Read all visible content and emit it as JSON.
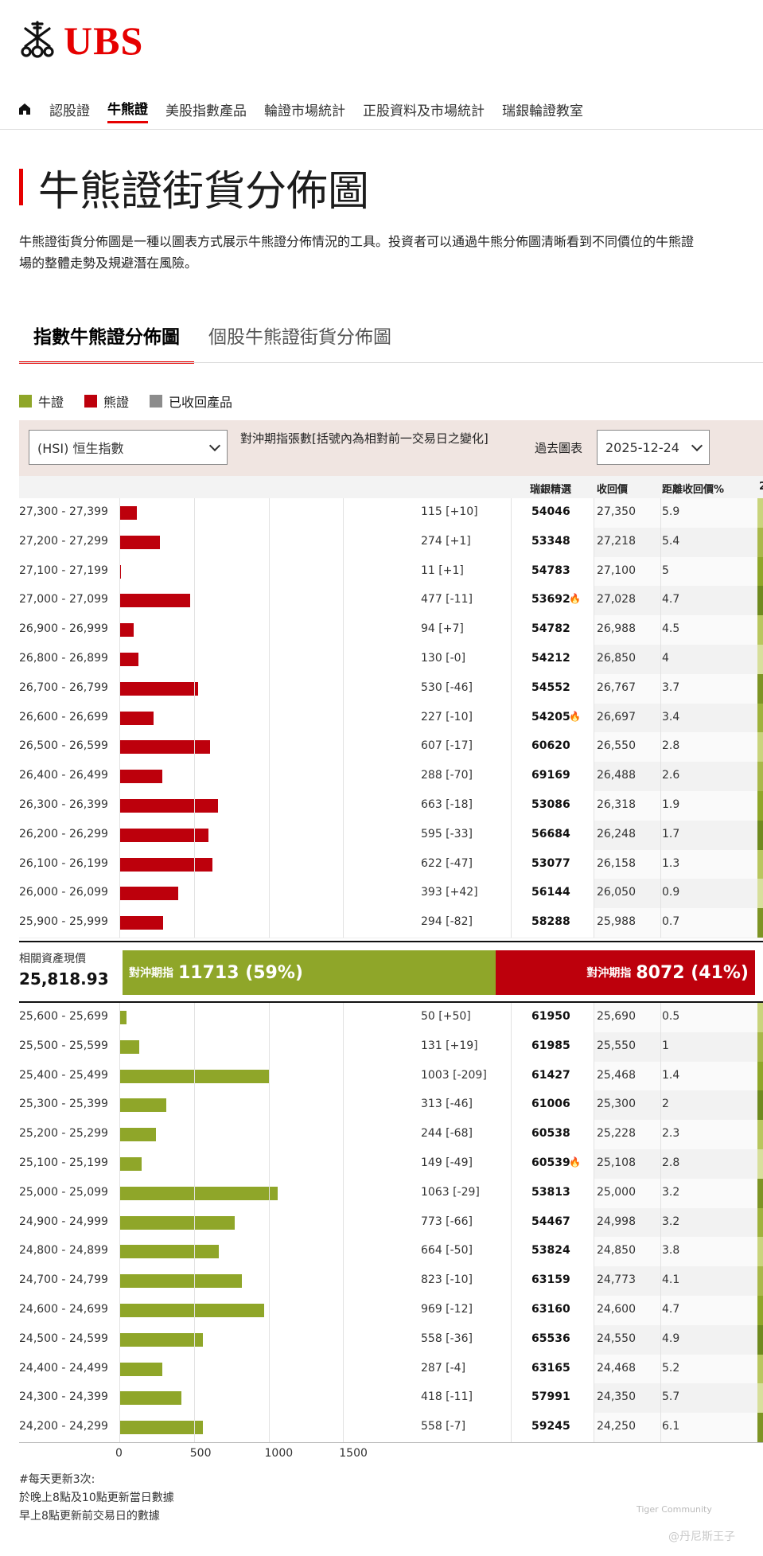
{
  "header": {
    "logo_text": "UBS",
    "nav": [
      "認股證",
      "牛熊證",
      "美股指數產品",
      "輪證市場統計",
      "正股資料及市場統計",
      "瑞銀輪證教室"
    ],
    "nav_active": 1
  },
  "page": {
    "title": "牛熊證街貨分佈圖",
    "intro": "牛熊證街貨分佈圖是一種以圖表方式展示牛熊證分佈情況的工具。投資者可以通過牛熊分佈圖清晰看到不同價位的牛熊證\n場的整體走勢及規避潛在風險。"
  },
  "tabs": [
    {
      "label": "指數牛熊證分佈圖",
      "active": true
    },
    {
      "label": "個股牛熊證街貨分佈圖",
      "active": false
    }
  ],
  "legend": [
    {
      "label": "牛證",
      "color": "#8fa629"
    },
    {
      "label": "熊證",
      "color": "#bd000c"
    },
    {
      "label": "已收回產品",
      "color": "#8c8c8c"
    }
  ],
  "controls": {
    "underlying": "(HSI) 恒生指數",
    "hedge_label": "對沖期指張數[括號內為相對前一交易日之變化]",
    "past_chart_label": "過去圖表",
    "date": "2025-12-24"
  },
  "table_headers": {
    "code": "瑞銀精選",
    "call": "收回價",
    "distance": "距離收回價%",
    "extra": "2"
  },
  "bear_rows": [
    {
      "range": "27,300 - 27,399",
      "value": 115,
      "hedge": "115 [+10]",
      "code": "54046",
      "hot": false,
      "call": "27,350",
      "dist": "5.9"
    },
    {
      "range": "27,200 - 27,299",
      "value": 274,
      "hedge": "274 [+1]",
      "code": "53348",
      "hot": false,
      "call": "27,218",
      "dist": "5.4"
    },
    {
      "range": "27,100 - 27,199",
      "value": 11,
      "hedge": "11 [+1]",
      "code": "54783",
      "hot": false,
      "call": "27,100",
      "dist": "5"
    },
    {
      "range": "27,000 - 27,099",
      "value": 477,
      "hedge": "477 [-11]",
      "code": "53692",
      "hot": true,
      "call": "27,028",
      "dist": "4.7"
    },
    {
      "range": "26,900 - 26,999",
      "value": 94,
      "hedge": "94 [+7]",
      "code": "54782",
      "hot": false,
      "call": "26,988",
      "dist": "4.5"
    },
    {
      "range": "26,800 - 26,899",
      "value": 130,
      "hedge": "130 [-0]",
      "code": "54212",
      "hot": false,
      "call": "26,850",
      "dist": "4"
    },
    {
      "range": "26,700 - 26,799",
      "value": 530,
      "hedge": "530 [-46]",
      "code": "54552",
      "hot": false,
      "call": "26,767",
      "dist": "3.7"
    },
    {
      "range": "26,600 - 26,699",
      "value": 227,
      "hedge": "227 [-10]",
      "code": "54205",
      "hot": true,
      "call": "26,697",
      "dist": "3.4"
    },
    {
      "range": "26,500 - 26,599",
      "value": 607,
      "hedge": "607 [-17]",
      "code": "60620",
      "hot": false,
      "call": "26,550",
      "dist": "2.8"
    },
    {
      "range": "26,400 - 26,499",
      "value": 288,
      "hedge": "288 [-70]",
      "code": "69169",
      "hot": false,
      "call": "26,488",
      "dist": "2.6"
    },
    {
      "range": "26,300 - 26,399",
      "value": 663,
      "hedge": "663 [-18]",
      "code": "53086",
      "hot": false,
      "call": "26,318",
      "dist": "1.9"
    },
    {
      "range": "26,200 - 26,299",
      "value": 595,
      "hedge": "595 [-33]",
      "code": "56684",
      "hot": false,
      "call": "26,248",
      "dist": "1.7"
    },
    {
      "range": "26,100 - 26,199",
      "value": 622,
      "hedge": "622 [-47]",
      "code": "53077",
      "hot": false,
      "call": "26,158",
      "dist": "1.3"
    },
    {
      "range": "26,000 - 26,099",
      "value": 393,
      "hedge": "393 [+42]",
      "code": "56144",
      "hot": false,
      "call": "26,050",
      "dist": "0.9"
    },
    {
      "range": "25,900 - 25,999",
      "value": 294,
      "hedge": "294 [-82]",
      "code": "58288",
      "hot": false,
      "call": "25,988",
      "dist": "0.7"
    }
  ],
  "summary": {
    "label": "相關資產現價",
    "price": "25,818.93",
    "bull_prefix": "對沖期指",
    "bull_value": "11713 (59%)",
    "bull_share": 59,
    "bear_prefix": "對沖期指",
    "bear_value": "8072 (41%)"
  },
  "bull_rows": [
    {
      "range": "25,600 - 25,699",
      "value": 50,
      "hedge": "50 [+50]",
      "code": "61950",
      "hot": false,
      "call": "25,690",
      "dist": "0.5"
    },
    {
      "range": "25,500 - 25,599",
      "value": 131,
      "hedge": "131 [+19]",
      "code": "61985",
      "hot": false,
      "call": "25,550",
      "dist": "1"
    },
    {
      "range": "25,400 - 25,499",
      "value": 1003,
      "hedge": "1003 [-209]",
      "code": "61427",
      "hot": false,
      "call": "25,468",
      "dist": "1.4"
    },
    {
      "range": "25,300 - 25,399",
      "value": 313,
      "hedge": "313 [-46]",
      "code": "61006",
      "hot": false,
      "call": "25,300",
      "dist": "2"
    },
    {
      "range": "25,200 - 25,299",
      "value": 244,
      "hedge": "244 [-68]",
      "code": "60538",
      "hot": false,
      "call": "25,228",
      "dist": "2.3"
    },
    {
      "range": "25,100 - 25,199",
      "value": 149,
      "hedge": "149 [-49]",
      "code": "60539",
      "hot": true,
      "call": "25,108",
      "dist": "2.8"
    },
    {
      "range": "25,000 - 25,099",
      "value": 1063,
      "hedge": "1063 [-29]",
      "code": "53813",
      "hot": false,
      "call": "25,000",
      "dist": "3.2"
    },
    {
      "range": "24,900 - 24,999",
      "value": 773,
      "hedge": "773 [-66]",
      "code": "54467",
      "hot": false,
      "call": "24,998",
      "dist": "3.2"
    },
    {
      "range": "24,800 - 24,899",
      "value": 664,
      "hedge": "664 [-50]",
      "code": "53824",
      "hot": false,
      "call": "24,850",
      "dist": "3.8"
    },
    {
      "range": "24,700 - 24,799",
      "value": 823,
      "hedge": "823 [-10]",
      "code": "63159",
      "hot": false,
      "call": "24,773",
      "dist": "4.1"
    },
    {
      "range": "24,600 - 24,699",
      "value": 969,
      "hedge": "969 [-12]",
      "code": "63160",
      "hot": false,
      "call": "24,600",
      "dist": "4.7"
    },
    {
      "range": "24,500 - 24,599",
      "value": 558,
      "hedge": "558 [-36]",
      "code": "65536",
      "hot": false,
      "call": "24,550",
      "dist": "4.9"
    },
    {
      "range": "24,400 - 24,499",
      "value": 287,
      "hedge": "287 [-4]",
      "code": "63165",
      "hot": false,
      "call": "24,468",
      "dist": "5.2"
    },
    {
      "range": "24,300 - 24,399",
      "value": 418,
      "hedge": "418 [-11]",
      "code": "57991",
      "hot": false,
      "call": "24,350",
      "dist": "5.7"
    },
    {
      "range": "24,200 - 24,299",
      "value": 558,
      "hedge": "558 [-7]",
      "code": "59245",
      "hot": false,
      "call": "24,250",
      "dist": "6.1"
    }
  ],
  "axis_ticks": [
    0,
    500,
    1000,
    1500
  ],
  "footnote": "#每天更新3次:\n於晚上8點及10點更新當日數據\n早上8點更新前交易日的數據",
  "watermark": {
    "line1": "Tiger Community",
    "line2": "@丹尼斯王子"
  }
}
